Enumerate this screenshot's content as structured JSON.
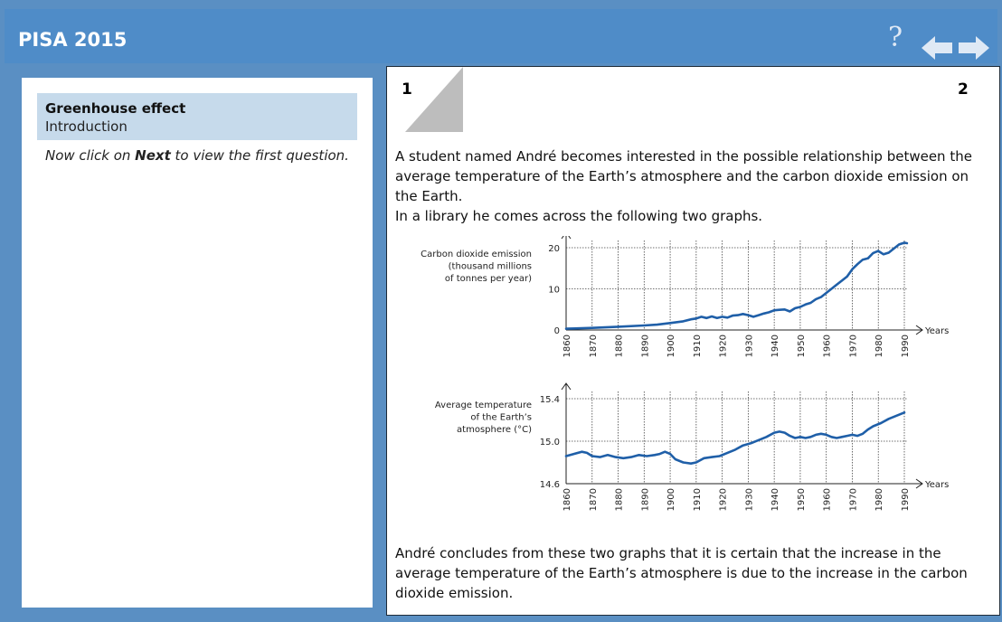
{
  "app": {
    "title": "PISA 2015"
  },
  "nav": {
    "help_label": "?",
    "back_icon": "arrow-left-icon",
    "next_icon": "arrow-right-icon",
    "arrow_color": "#dfe9f5"
  },
  "unit": {
    "title": "Greenhouse effect",
    "subtitle": "Introduction"
  },
  "instruction": {
    "before": "Now click on ",
    "bold": "Next",
    "after": " to view the first question."
  },
  "page_numbers": {
    "left": "1",
    "right": "2"
  },
  "stimulus": {
    "paragraph1": "A student named André becomes interested in the possible relationship between the average temperature of the Earth’s atmosphere and the carbon dioxide emission on the Earth.",
    "paragraph2": "In a library he comes across the following two graphs.",
    "conclusion": "André concludes from these two graphs that it is certain that the increase in the average temperature of the Earth’s atmosphere is due to the increase in the carbon dioxide emission."
  },
  "chart_data": [
    {
      "type": "line",
      "ylabel_lines": [
        "Carbon dioxide emission",
        "(thousand millions",
        "of tonnes per year)"
      ],
      "xlabel": "Years",
      "xlim": [
        1860,
        1990
      ],
      "ylim": [
        0,
        20
      ],
      "yticks": [
        0,
        10,
        20
      ],
      "xticks": [
        1860,
        1870,
        1880,
        1890,
        1900,
        1910,
        1920,
        1930,
        1940,
        1950,
        1960,
        1970,
        1980,
        1990
      ],
      "grid": true,
      "line_color": "#1f5fa8",
      "points": [
        [
          1860,
          0.3
        ],
        [
          1870,
          0.5
        ],
        [
          1880,
          0.8
        ],
        [
          1890,
          1.1
        ],
        [
          1895,
          1.3
        ],
        [
          1900,
          1.7
        ],
        [
          1905,
          2.1
        ],
        [
          1908,
          2.6
        ],
        [
          1910,
          2.8
        ],
        [
          1912,
          3.2
        ],
        [
          1914,
          2.9
        ],
        [
          1916,
          3.3
        ],
        [
          1918,
          2.9
        ],
        [
          1920,
          3.2
        ],
        [
          1922,
          3.0
        ],
        [
          1924,
          3.5
        ],
        [
          1926,
          3.6
        ],
        [
          1928,
          3.9
        ],
        [
          1930,
          3.6
        ],
        [
          1932,
          3.2
        ],
        [
          1934,
          3.6
        ],
        [
          1936,
          4.0
        ],
        [
          1938,
          4.3
        ],
        [
          1940,
          4.8
        ],
        [
          1942,
          4.9
        ],
        [
          1944,
          5.0
        ],
        [
          1946,
          4.5
        ],
        [
          1948,
          5.3
        ],
        [
          1950,
          5.6
        ],
        [
          1952,
          6.2
        ],
        [
          1954,
          6.6
        ],
        [
          1956,
          7.5
        ],
        [
          1958,
          8.0
        ],
        [
          1960,
          9.0
        ],
        [
          1962,
          10.0
        ],
        [
          1964,
          11.0
        ],
        [
          1966,
          12.0
        ],
        [
          1968,
          13.0
        ],
        [
          1970,
          14.8
        ],
        [
          1972,
          16.0
        ],
        [
          1974,
          17.1
        ],
        [
          1976,
          17.4
        ],
        [
          1978,
          18.7
        ],
        [
          1980,
          19.2
        ],
        [
          1982,
          18.4
        ],
        [
          1984,
          18.8
        ],
        [
          1986,
          19.8
        ],
        [
          1988,
          20.8
        ],
        [
          1990,
          21.2
        ],
        [
          1991,
          21.1
        ]
      ]
    },
    {
      "type": "line",
      "ylabel_lines": [
        "Average temperature",
        "of the Earth’s",
        "atmosphere (°C)"
      ],
      "xlabel": "Years",
      "xlim": [
        1860,
        1990
      ],
      "ylim": [
        14.6,
        15.4
      ],
      "yticks": [
        14.6,
        15.0,
        15.4
      ],
      "xticks": [
        1860,
        1870,
        1880,
        1890,
        1900,
        1910,
        1920,
        1930,
        1940,
        1950,
        1960,
        1970,
        1980,
        1990
      ],
      "grid": true,
      "line_color": "#1f5fa8",
      "points": [
        [
          1860,
          14.86
        ],
        [
          1863,
          14.88
        ],
        [
          1866,
          14.9
        ],
        [
          1868,
          14.89
        ],
        [
          1870,
          14.86
        ],
        [
          1873,
          14.85
        ],
        [
          1876,
          14.87
        ],
        [
          1879,
          14.85
        ],
        [
          1882,
          14.84
        ],
        [
          1885,
          14.85
        ],
        [
          1888,
          14.87
        ],
        [
          1891,
          14.86
        ],
        [
          1894,
          14.87
        ],
        [
          1896,
          14.88
        ],
        [
          1898,
          14.9
        ],
        [
          1900,
          14.88
        ],
        [
          1902,
          14.83
        ],
        [
          1905,
          14.8
        ],
        [
          1908,
          14.79
        ],
        [
          1910,
          14.8
        ],
        [
          1913,
          14.84
        ],
        [
          1916,
          14.85
        ],
        [
          1919,
          14.86
        ],
        [
          1922,
          14.89
        ],
        [
          1925,
          14.92
        ],
        [
          1928,
          14.96
        ],
        [
          1931,
          14.98
        ],
        [
          1934,
          15.01
        ],
        [
          1937,
          15.04
        ],
        [
          1940,
          15.08
        ],
        [
          1942,
          15.09
        ],
        [
          1944,
          15.08
        ],
        [
          1946,
          15.05
        ],
        [
          1948,
          15.03
        ],
        [
          1950,
          15.04
        ],
        [
          1952,
          15.03
        ],
        [
          1954,
          15.04
        ],
        [
          1956,
          15.06
        ],
        [
          1958,
          15.07
        ],
        [
          1960,
          15.06
        ],
        [
          1962,
          15.04
        ],
        [
          1964,
          15.03
        ],
        [
          1966,
          15.04
        ],
        [
          1968,
          15.05
        ],
        [
          1970,
          15.06
        ],
        [
          1972,
          15.05
        ],
        [
          1974,
          15.07
        ],
        [
          1976,
          15.11
        ],
        [
          1978,
          15.14
        ],
        [
          1981,
          15.17
        ],
        [
          1984,
          15.21
        ],
        [
          1987,
          15.24
        ],
        [
          1990,
          15.27
        ]
      ]
    }
  ]
}
